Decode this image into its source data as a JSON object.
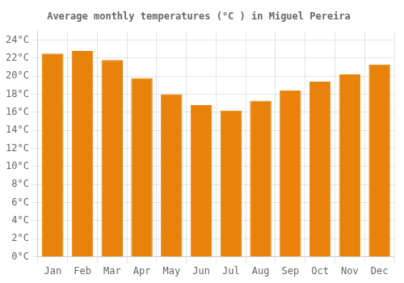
{
  "chart_data": {
    "type": "bar",
    "title": "Average monthly temperatures (°C ) in Miguel Pereira",
    "categories": [
      "Jan",
      "Feb",
      "Mar",
      "Apr",
      "May",
      "Jun",
      "Jul",
      "Aug",
      "Sep",
      "Oct",
      "Nov",
      "Dec"
    ],
    "values": [
      22.5,
      22.8,
      21.8,
      19.8,
      18.0,
      16.8,
      16.2,
      17.3,
      18.4,
      19.4,
      20.2,
      21.3
    ],
    "color": "#E8820A",
    "ylim": [
      0,
      25
    ],
    "yticks": [
      {
        "value": 0,
        "label": "0°C"
      },
      {
        "value": 2,
        "label": "2°C"
      },
      {
        "value": 4,
        "label": "4°C"
      },
      {
        "value": 6,
        "label": "6°C"
      },
      {
        "value": 8,
        "label": "8°C"
      },
      {
        "value": 10,
        "label": "10°C"
      },
      {
        "value": 12,
        "label": "12°C"
      },
      {
        "value": 14,
        "label": "14°C"
      },
      {
        "value": 16,
        "label": "16°C"
      },
      {
        "value": 18,
        "label": "18°C"
      },
      {
        "value": 20,
        "label": "20°C"
      },
      {
        "value": 22,
        "label": "22°C"
      },
      {
        "value": 24,
        "label": "24°C"
      }
    ],
    "grid": true
  }
}
